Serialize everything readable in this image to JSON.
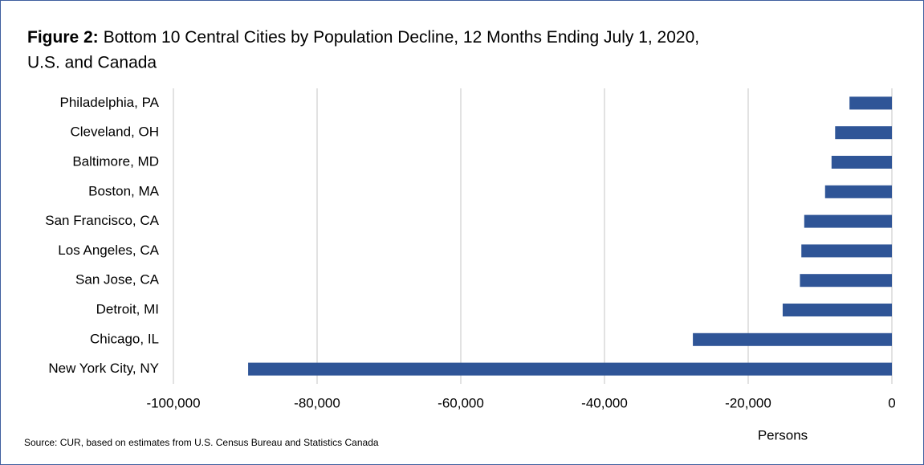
{
  "chart_data": {
    "type": "barh",
    "title_label": "Figure 2:",
    "title": "Bottom 10 Central Cities by Population Decline, 12 Months Ending July 1, 2020,",
    "subtitle": "U.S. and Canada",
    "x_label": "Persons",
    "source": "Source: CUR, based on estimates from U.S. Census Bureau and Statistics Canada",
    "categories": [
      "Philadelphia, PA",
      "Cleveland, OH",
      "Baltimore, MD",
      "Boston, MA",
      "San Francisco, CA",
      "Los Angeles, CA",
      "San Jose, CA",
      "Detroit, MI",
      "Chicago, IL",
      "New York City, NY"
    ],
    "values": [
      -5900,
      -7900,
      -8400,
      -9300,
      -12200,
      -12600,
      -12800,
      -15200,
      -27700,
      -89600
    ],
    "color": "#2f5597",
    "xlim": [
      -100000,
      0
    ],
    "xticks": [
      {
        "value": -100000,
        "label": "-100,000"
      },
      {
        "value": -80000,
        "label": "-80,000"
      },
      {
        "value": -60000,
        "label": "-60,000"
      },
      {
        "value": -40000,
        "label": "-40,000"
      },
      {
        "value": -20000,
        "label": "-20,000"
      },
      0
    ],
    "grid": true
  }
}
